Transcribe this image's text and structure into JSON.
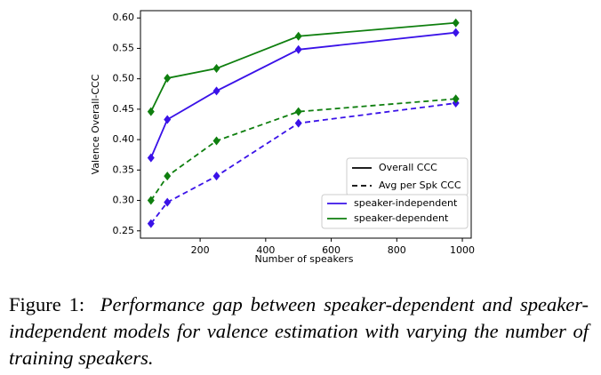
{
  "chart_data": {
    "type": "line",
    "xlabel": "Number of speakers",
    "ylabel": "Valence Overall-CCC",
    "x": [
      50,
      100,
      250,
      500,
      980
    ],
    "metrics": [
      "Overall CCC",
      "Avg per Spk CCC"
    ],
    "series": [
      {
        "name": "speaker-independent",
        "color": "#3a12e8",
        "values": [
          [
            0.37,
            0.433,
            0.48,
            0.548,
            0.576
          ],
          [
            0.262,
            0.297,
            0.34,
            0.427,
            0.46
          ]
        ]
      },
      {
        "name": "speaker-dependent",
        "color": "#0f7f0f",
        "values": [
          [
            0.446,
            0.501,
            0.517,
            0.57,
            0.592
          ],
          [
            0.3,
            0.34,
            0.398,
            0.446,
            0.467
          ]
        ]
      }
    ],
    "xlim": [
      18,
      1027
    ],
    "xticks": [
      200,
      400,
      600,
      800,
      1000
    ],
    "ylim": [
      0.238,
      0.612
    ],
    "yticks": [
      {
        "value": 0.25,
        "label": "0.25"
      },
      {
        "value": 0.3,
        "label": "0.30"
      },
      {
        "value": 0.35,
        "label": "0.35"
      },
      {
        "value": 0.4,
        "label": "0.40"
      },
      {
        "value": 0.45,
        "label": "0.45"
      },
      {
        "value": 0.5,
        "label": "0.50"
      },
      {
        "value": 0.55,
        "label": "0.55"
      },
      {
        "value": 0.6,
        "label": "0.60"
      }
    ],
    "grid": false
  },
  "caption": {
    "label": "Figure 1:",
    "text": "Performance gap between speaker-dependent and speaker-independent models for valence estimation with varying the number of training speakers."
  }
}
